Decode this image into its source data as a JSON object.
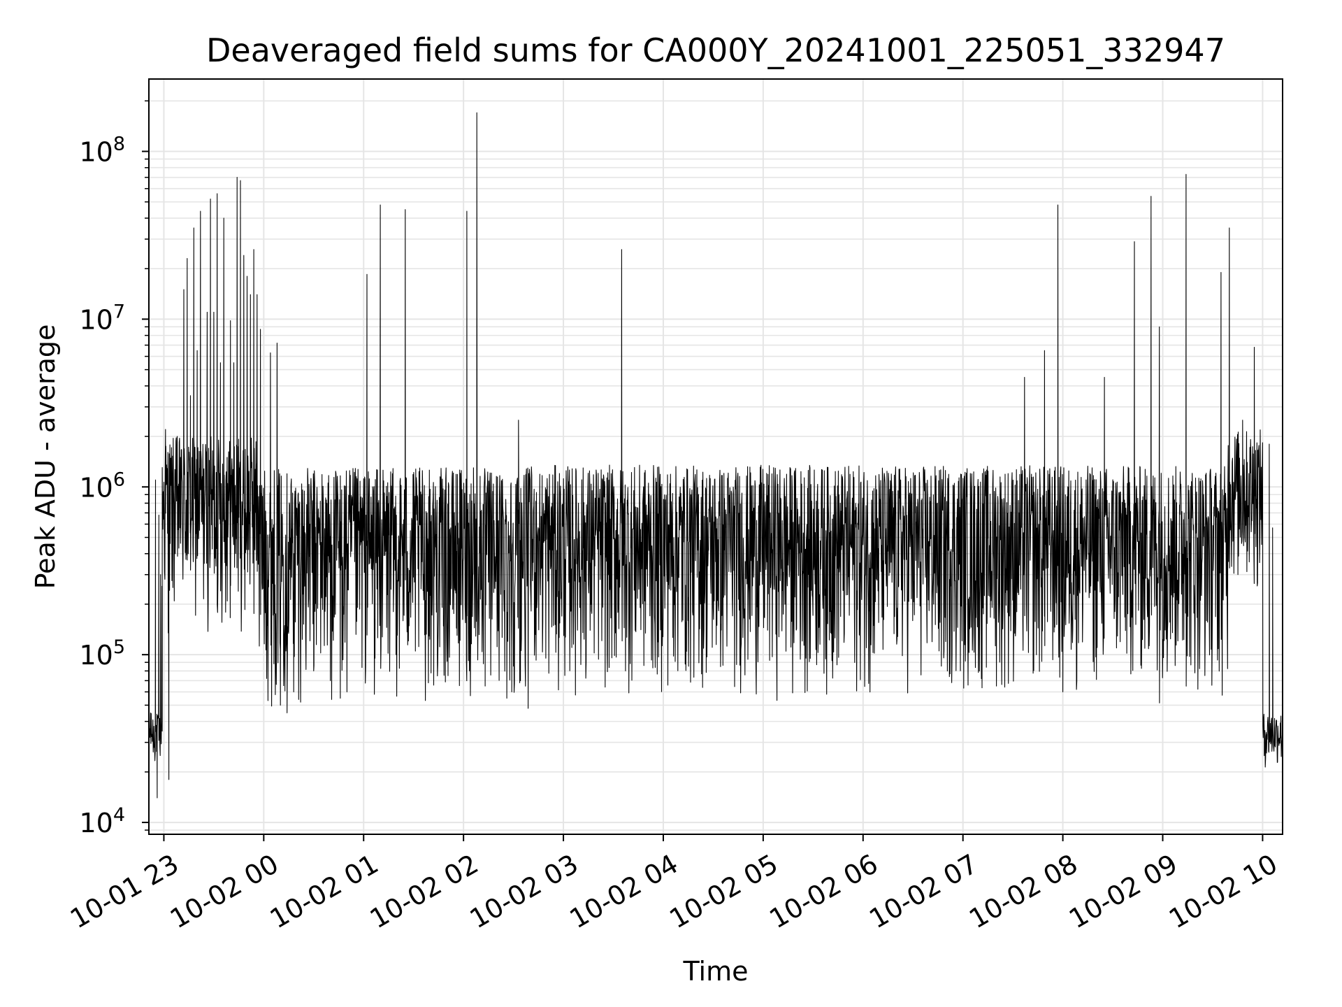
{
  "chart_data": {
    "type": "line",
    "title": "Deaveraged field sums for CA000Y_20241001_225051_332947",
    "xlabel": "Time",
    "ylabel": "Peak ADU - average",
    "yscale": "log",
    "ylim": [
      8500,
      270000000
    ],
    "xlim": [
      "2024-10-01 22:51",
      "2024-10-02 10:12"
    ],
    "grid": true,
    "line_color": "#000000",
    "grid_color": "#e5e5e5",
    "x_ticks": [
      {
        "t": "2024-10-01 23:00",
        "label": "10-01 23"
      },
      {
        "t": "2024-10-02 00:00",
        "label": "10-02 00"
      },
      {
        "t": "2024-10-02 01:00",
        "label": "10-02 01"
      },
      {
        "t": "2024-10-02 02:00",
        "label": "10-02 02"
      },
      {
        "t": "2024-10-02 03:00",
        "label": "10-02 03"
      },
      {
        "t": "2024-10-02 04:00",
        "label": "10-02 04"
      },
      {
        "t": "2024-10-02 05:00",
        "label": "10-02 05"
      },
      {
        "t": "2024-10-02 06:00",
        "label": "10-02 06"
      },
      {
        "t": "2024-10-02 07:00",
        "label": "10-02 07"
      },
      {
        "t": "2024-10-02 08:00",
        "label": "10-02 08"
      },
      {
        "t": "2024-10-02 09:00",
        "label": "10-02 09"
      },
      {
        "t": "2024-10-02 10:00",
        "label": "10-02 10"
      }
    ],
    "y_ticks": [
      {
        "value": 10000,
        "base": "10",
        "exp": "4"
      },
      {
        "value": 100000,
        "base": "10",
        "exp": "5"
      },
      {
        "value": 1000000,
        "base": "10",
        "exp": "6"
      },
      {
        "value": 10000000,
        "base": "10",
        "exp": "7"
      },
      {
        "value": 100000000,
        "base": "10",
        "exp": "8"
      }
    ],
    "series": [
      {
        "values_description_note": "",
        "x": [
          "2024-10-01 22:51",
          "2024-10-01 22:52",
          "2024-10-01 22:53",
          "2024-10-01 22:54",
          "2024-10-01 22:55",
          "2024-10-01 22:56",
          "2024-10-01 22:57",
          "2024-10-01 22:58",
          "2024-10-01 22:59",
          "2024-10-01 23:01",
          "2024-10-01 23:03",
          "2024-10-01 23:05",
          "2024-10-01 23:08",
          "2024-10-01 23:10",
          "2024-10-01 23:12",
          "2024-10-01 23:14",
          "2024-10-01 23:16",
          "2024-10-01 23:18",
          "2024-10-01 23:20",
          "2024-10-01 23:22",
          "2024-10-01 23:24",
          "2024-10-01 23:26",
          "2024-10-01 23:28",
          "2024-10-01 23:30",
          "2024-10-01 23:32",
          "2024-10-01 23:34",
          "2024-10-01 23:36",
          "2024-10-01 23:38",
          "2024-10-01 23:40",
          "2024-10-01 23:42",
          "2024-10-01 23:44",
          "2024-10-01 23:46",
          "2024-10-01 23:48",
          "2024-10-01 23:50",
          "2024-10-01 23:52",
          "2024-10-01 23:54",
          "2024-10-01 23:56",
          "2024-10-01 23:58",
          "2024-10-02 00:04",
          "2024-10-02 00:08",
          "2024-10-02 00:10",
          "2024-10-02 00:14",
          "2024-10-02 00:18",
          "2024-10-02 00:30",
          "2024-10-02 00:40",
          "2024-10-02 00:46",
          "2024-10-02 00:50",
          "2024-10-02 01:02",
          "2024-10-02 01:10",
          "2024-10-02 01:25",
          "2024-10-02 02:02",
          "2024-10-02 02:06",
          "2024-10-02 02:08",
          "2024-10-02 02:13",
          "2024-10-02 02:26",
          "2024-10-02 02:29",
          "2024-10-02 02:33",
          "2024-10-02 03:35",
          "2024-10-02 07:37",
          "2024-10-02 07:49",
          "2024-10-02 07:57",
          "2024-10-02 08:00",
          "2024-10-02 08:25",
          "2024-10-02 08:43",
          "2024-10-02 08:53",
          "2024-10-02 08:58",
          "2024-10-02 09:14",
          "2024-10-02 09:35",
          "2024-10-02 09:40",
          "2024-10-02 09:48",
          "2024-10-02 09:55",
          "2024-10-02 10:01",
          "2024-10-02 10:04",
          "2024-10-02 10:06",
          "2024-10-02 10:12"
        ],
        "values": [
          30000,
          45000,
          32000,
          28000,
          1100000,
          14000,
          680000,
          300000,
          35000,
          2200000,
          18000,
          1200000,
          2000000,
          1500000,
          15000000,
          23000000,
          3500000,
          35000000,
          6500000,
          44000000,
          1200000,
          11000000,
          52000000,
          11000000,
          56000000,
          5500000,
          40000000,
          1500000,
          9800000,
          5500000,
          70000000,
          67000000,
          24000000,
          18000000,
          14000000,
          26000000,
          14000000,
          8700000,
          6300000,
          7200000,
          50000,
          45000,
          60000,
          80000,
          70000,
          55000,
          60000,
          18500000,
          48000000,
          45000000,
          44000000,
          1300000,
          170000000,
          65000,
          55000,
          60000,
          2500000,
          26000000,
          4500000,
          6500000,
          48000000,
          60000,
          4500000,
          29000000,
          54000000,
          9000000,
          73000000,
          19000000,
          35000000,
          2500000,
          6800000,
          25000,
          1800000,
          570000,
          20000
        ]
      }
    ]
  }
}
